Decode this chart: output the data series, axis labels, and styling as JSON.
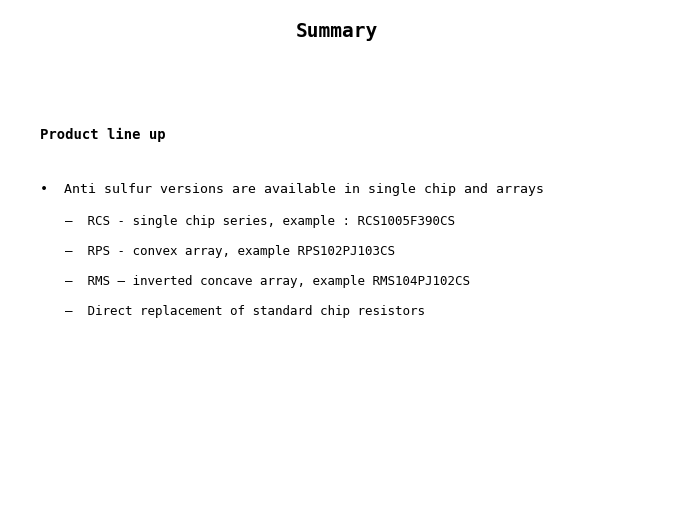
{
  "title": "Summary",
  "title_fontsize": 14,
  "title_fontweight": "bold",
  "background_color": "#ffffff",
  "text_color": "#000000",
  "section_heading": "Product line up",
  "section_fontsize": 10,
  "bullet_dot": "•",
  "bullet_text": "Anti sulfur versions are available in single chip and arrays",
  "bullet_fontsize": 9.5,
  "sub_bullets": [
    "RCS - single chip series, example : RCS1005F390CS",
    "RPS - convex array, example RPS102PJ103CS",
    "RMS – inverted concave array, example RMS104PJ102CS",
    "Direct replacement of standard chip resistors"
  ],
  "sub_bullet_fontsize": 9,
  "sub_bullet_dash": "–",
  "font_family": "DejaVu Sans Mono"
}
